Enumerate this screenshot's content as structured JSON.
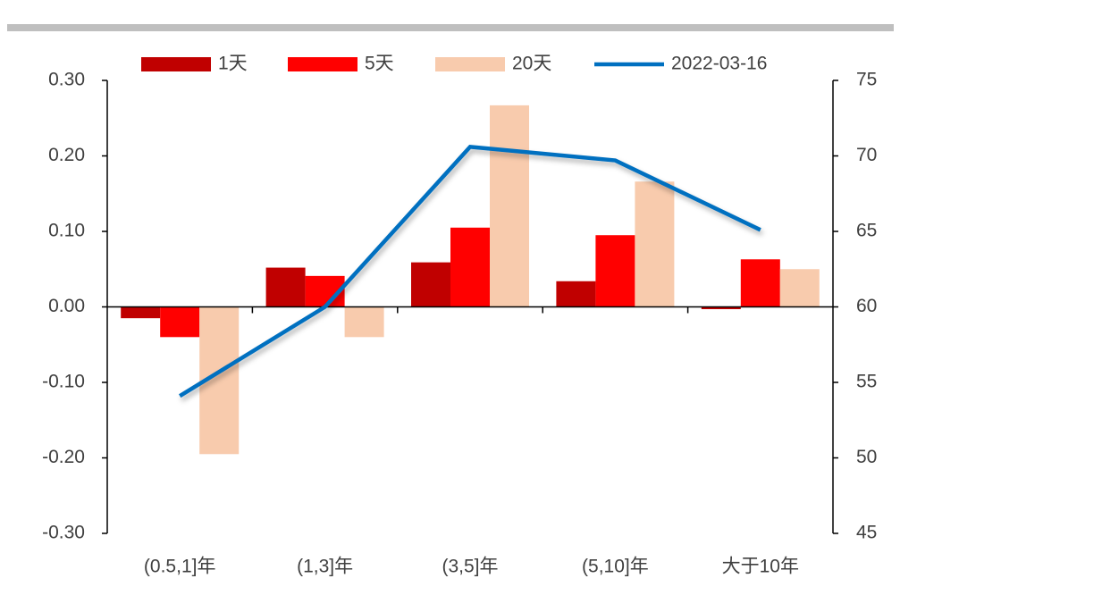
{
  "chart_data": {
    "type": "bar-line",
    "categories": [
      "(0.5,1]年",
      "(1,3]年",
      "(3,5]年",
      "(5,10]年",
      "大于10年"
    ],
    "series": [
      {
        "name": "1天",
        "type": "bar",
        "color": "#c00000",
        "values": [
          -0.015,
          0.052,
          0.059,
          0.034,
          -0.003
        ]
      },
      {
        "name": "5天",
        "type": "bar",
        "color": "#ff0000",
        "values": [
          -0.04,
          0.041,
          0.105,
          0.095,
          0.063
        ]
      },
      {
        "name": "20天",
        "type": "bar",
        "color": "#f8cbad",
        "values": [
          -0.195,
          -0.04,
          0.267,
          0.166,
          0.05
        ]
      },
      {
        "name": "2022-03-16",
        "type": "line",
        "axis": "y2",
        "color": "#0070c0",
        "values": [
          54.1,
          60.0,
          70.6,
          69.7,
          65.1
        ]
      }
    ],
    "ylim": [
      -0.3,
      0.3
    ],
    "yticks": [
      {
        "value": -0.3,
        "label": "-0.30"
      },
      {
        "value": -0.2,
        "label": "-0.20"
      },
      {
        "value": -0.1,
        "label": "-0.10"
      },
      {
        "value": 0,
        "label": "0.00"
      },
      {
        "value": 0.1,
        "label": "0.10"
      },
      {
        "value": 0.2,
        "label": "0.20"
      },
      {
        "value": 0.3,
        "label": "0.30"
      }
    ],
    "y2lim": [
      45,
      75
    ],
    "y2ticks": [
      45,
      50,
      55,
      60,
      65,
      70,
      75
    ]
  }
}
